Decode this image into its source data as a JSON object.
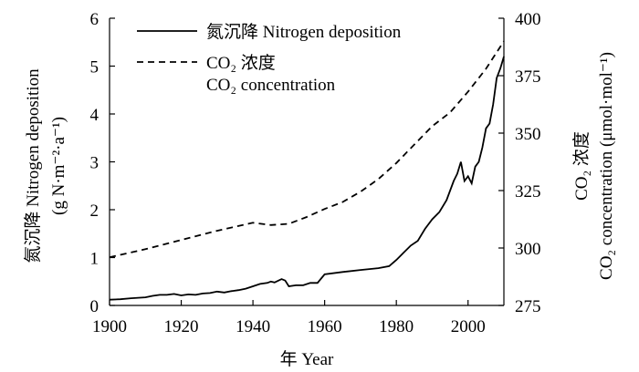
{
  "chart_data": {
    "type": "line",
    "title": "",
    "xlabel": "年 Year",
    "xlim": [
      1900,
      2010
    ],
    "ylim": [
      0,
      6
    ],
    "ylabel_left": {
      "line1": "氮沉降 Nitrogen deposition",
      "line2": "(g N·m⁻²·a⁻¹)"
    },
    "ylim_right": [
      275,
      400
    ],
    "ylabel_right": {
      "line1": "CO₂ 浓度",
      "line2": "CO₂ concentration (μmol·mol⁻¹)"
    },
    "x_ticks": [
      "1900",
      "1920",
      "1940",
      "1960",
      "1980",
      "2000"
    ],
    "y_ticks_left": [
      "0",
      "1",
      "2",
      "3",
      "4",
      "5",
      "6"
    ],
    "y_ticks_right": [
      "275",
      "300",
      "325",
      "350",
      "375",
      "400"
    ],
    "legend_position": "top-left",
    "series": [
      {
        "name": "氮沉降 Nitrogen deposition",
        "axis": "left",
        "style": "solid",
        "x": [
          1900,
          1903,
          1906,
          1908,
          1910,
          1912,
          1914,
          1916,
          1918,
          1920,
          1922,
          1924,
          1926,
          1928,
          1930,
          1932,
          1934,
          1936,
          1938,
          1940,
          1942,
          1944,
          1945,
          1946,
          1948,
          1949,
          1950,
          1952,
          1954,
          1956,
          1958,
          1960,
          1965,
          1970,
          1975,
          1978,
          1980,
          1982,
          1984,
          1986,
          1988,
          1990,
          1992,
          1994,
          1996,
          1997,
          1998,
          1999,
          2000,
          2001,
          2002,
          2003,
          2004,
          2005,
          2006,
          2007,
          2008,
          2009,
          2010
        ],
        "values": [
          0.12,
          0.13,
          0.15,
          0.16,
          0.17,
          0.2,
          0.22,
          0.22,
          0.24,
          0.21,
          0.23,
          0.22,
          0.25,
          0.26,
          0.29,
          0.27,
          0.3,
          0.32,
          0.35,
          0.4,
          0.45,
          0.47,
          0.5,
          0.48,
          0.55,
          0.52,
          0.4,
          0.42,
          0.42,
          0.47,
          0.47,
          0.65,
          0.7,
          0.74,
          0.78,
          0.82,
          0.95,
          1.1,
          1.25,
          1.35,
          1.6,
          1.8,
          1.95,
          2.2,
          2.6,
          2.75,
          3.0,
          2.6,
          2.7,
          2.55,
          2.9,
          3.0,
          3.3,
          3.7,
          3.8,
          4.2,
          4.75,
          4.95,
          5.2
        ]
      },
      {
        "name": "CO₂ 浓度",
        "name_en": "CO₂ concentration",
        "axis": "right",
        "style": "dashed",
        "x": [
          1900,
          1910,
          1920,
          1930,
          1940,
          1945,
          1950,
          1955,
          1960,
          1965,
          1970,
          1975,
          1980,
          1985,
          1990,
          1995,
          2000,
          2005,
          2010
        ],
        "values": [
          296,
          299.5,
          303.5,
          307.5,
          311,
          310,
          310.5,
          313.5,
          317,
          320,
          324.5,
          330,
          337,
          345,
          353,
          359,
          368,
          378,
          390
        ]
      }
    ]
  }
}
